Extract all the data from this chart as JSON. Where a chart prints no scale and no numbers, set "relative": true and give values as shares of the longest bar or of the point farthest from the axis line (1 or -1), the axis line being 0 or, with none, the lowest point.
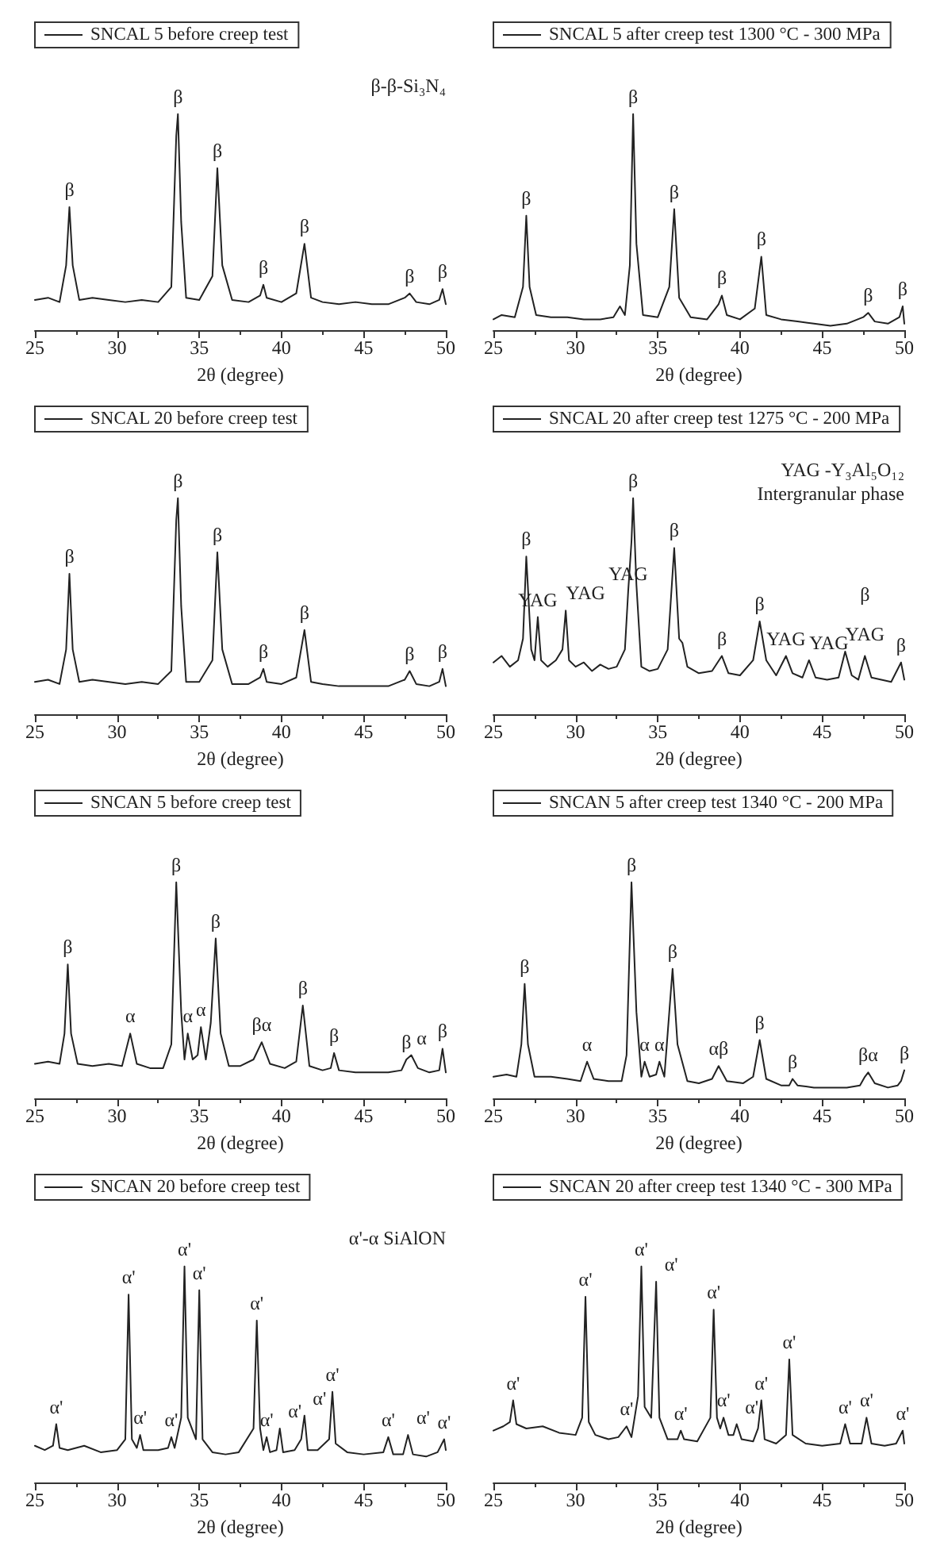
{
  "chart_data": [
    {
      "type": "line",
      "relative": true,
      "xlabel": "2θ (degree)",
      "xlim": [
        25,
        50
      ],
      "xticks": [
        25,
        30,
        35,
        40,
        45,
        50
      ],
      "tick_labels": "x",
      "legend": "top left",
      "annotations": [
        "β-β-Si₃N₄",
        {
          "text": "β",
          "x": 27.1,
          "y": 0.57
        },
        {
          "text": "β",
          "x": 33.7,
          "y": 1
        },
        {
          "text": "β",
          "x": 36.1,
          "y": 0.75
        },
        {
          "text": "β",
          "x": 38.9,
          "y": 0.21
        },
        {
          "text": "β",
          "x": 41.4,
          "y": 0.4
        },
        {
          "text": "β",
          "x": 47.8,
          "y": 0.17
        },
        {
          "text": "β",
          "x": 49.8,
          "y": 0.19
        }
      ],
      "series": [
        {
          "name": "SNCAL 5 before creep test",
          "color": "#222222",
          "x": [
            25,
            25.8,
            26.5,
            26.9,
            27.1,
            27.3,
            27.7,
            28.5,
            29.5,
            30.5,
            31.5,
            32.5,
            33.3,
            33.6,
            33.7,
            33.9,
            34.2,
            35,
            35.8,
            36.1,
            36.4,
            37,
            38,
            38.7,
            38.9,
            39.1,
            40,
            40.9,
            41.4,
            41.8,
            42.5,
            43.5,
            44.5,
            45.5,
            46.5,
            47.5,
            47.8,
            48.2,
            49,
            49.6,
            49.8,
            50
          ],
          "values": [
            0.14,
            0.15,
            0.13,
            0.3,
            0.57,
            0.3,
            0.14,
            0.15,
            0.14,
            0.13,
            0.14,
            0.13,
            0.2,
            0.9,
            1,
            0.5,
            0.15,
            0.14,
            0.25,
            0.75,
            0.3,
            0.14,
            0.13,
            0.16,
            0.21,
            0.15,
            0.13,
            0.17,
            0.4,
            0.15,
            0.13,
            0.12,
            0.13,
            0.12,
            0.12,
            0.15,
            0.17,
            0.13,
            0.12,
            0.14,
            0.19,
            0.12
          ]
        }
      ]
    },
    {
      "type": "line",
      "relative": true,
      "xlabel": "2θ (degree)",
      "xlim": [
        25,
        50
      ],
      "xticks": [
        25,
        30,
        35,
        40,
        45,
        50
      ],
      "tick_labels": "x",
      "legend": "top left",
      "annotations": [
        {
          "text": "β",
          "x": 27.0,
          "y": 0.53
        },
        {
          "text": "β",
          "x": 33.5,
          "y": 1
        },
        {
          "text": "β",
          "x": 36.0,
          "y": 0.56
        },
        {
          "text": "β",
          "x": 38.9,
          "y": 0.16
        },
        {
          "text": "β",
          "x": 41.3,
          "y": 0.34
        },
        {
          "text": "β",
          "x": 47.8,
          "y": 0.08
        },
        {
          "text": "β",
          "x": 49.9,
          "y": 0.11
        }
      ],
      "series": [
        {
          "name": "SNCAL 5 after creep test 1300 °C - 300 MPa",
          "color": "#222222",
          "x": [
            25,
            25.5,
            26.3,
            26.8,
            27.0,
            27.2,
            27.6,
            28.5,
            29.5,
            30.5,
            31.5,
            32.3,
            32.7,
            33.0,
            33.3,
            33.5,
            33.7,
            34.1,
            35,
            35.7,
            36.0,
            36.3,
            37,
            38,
            38.7,
            38.9,
            39.2,
            40,
            40.9,
            41.3,
            41.6,
            42.5,
            43.5,
            44.5,
            45.5,
            46.5,
            47.5,
            47.8,
            48.2,
            49,
            49.7,
            49.9,
            50
          ],
          "values": [
            0.05,
            0.07,
            0.06,
            0.2,
            0.53,
            0.2,
            0.07,
            0.06,
            0.06,
            0.05,
            0.05,
            0.06,
            0.11,
            0.07,
            0.3,
            1,
            0.4,
            0.07,
            0.06,
            0.2,
            0.56,
            0.15,
            0.06,
            0.05,
            0.12,
            0.16,
            0.07,
            0.05,
            0.1,
            0.34,
            0.07,
            0.05,
            0.04,
            0.03,
            0.02,
            0.03,
            0.06,
            0.08,
            0.04,
            0.03,
            0.06,
            0.11,
            0.03
          ]
        }
      ]
    },
    {
      "type": "line",
      "relative": true,
      "xlabel": "2θ (degree)",
      "xlim": [
        25,
        50
      ],
      "xticks": [
        25,
        30,
        35,
        40,
        45,
        50
      ],
      "tick_labels": "x",
      "legend": "top left",
      "annotations": [
        {
          "text": "β",
          "x": 27.1,
          "y": 0.65
        },
        {
          "text": "β",
          "x": 33.7,
          "y": 1
        },
        {
          "text": "β",
          "x": 36.1,
          "y": 0.75
        },
        {
          "text": "β",
          "x": 38.9,
          "y": 0.21
        },
        {
          "text": "β",
          "x": 41.4,
          "y": 0.39
        },
        {
          "text": "β",
          "x": 47.8,
          "y": 0.2
        },
        {
          "text": "β",
          "x": 49.8,
          "y": 0.21
        }
      ],
      "series": [
        {
          "name": "SNCAL 20 before creep test",
          "color": "#222222",
          "x": [
            25,
            25.8,
            26.5,
            26.9,
            27.1,
            27.3,
            27.7,
            28.5,
            29.5,
            30.5,
            31.5,
            32.5,
            33.3,
            33.6,
            33.7,
            33.9,
            34.2,
            35,
            35.8,
            36.1,
            36.4,
            37,
            38,
            38.7,
            38.9,
            39.1,
            40,
            40.9,
            41.4,
            41.8,
            42.5,
            43.5,
            44.5,
            45.5,
            46.5,
            47.5,
            47.8,
            48.2,
            49,
            49.6,
            49.8,
            50
          ],
          "values": [
            0.15,
            0.16,
            0.14,
            0.3,
            0.65,
            0.3,
            0.15,
            0.16,
            0.15,
            0.14,
            0.15,
            0.14,
            0.2,
            0.9,
            1,
            0.5,
            0.15,
            0.15,
            0.25,
            0.75,
            0.3,
            0.14,
            0.14,
            0.17,
            0.21,
            0.15,
            0.14,
            0.17,
            0.39,
            0.15,
            0.14,
            0.13,
            0.13,
            0.13,
            0.13,
            0.16,
            0.2,
            0.14,
            0.13,
            0.15,
            0.21,
            0.13
          ]
        }
      ]
    },
    {
      "type": "line",
      "relative": true,
      "xlabel": "2θ (degree)",
      "xlim": [
        25,
        50
      ],
      "xticks": [
        25,
        30,
        35,
        40,
        45,
        50
      ],
      "tick_labels": "x",
      "legend": "top left",
      "annotations": [
        "YAG -Y₃Al₅O₁₂",
        "Intergranular phase",
        {
          "text": "β",
          "x": 27.0,
          "y": 0.73
        },
        {
          "text": "YAG",
          "x": 27.7,
          "y": 0.45
        },
        {
          "text": "YAG",
          "x": 29.4,
          "y": 0.48
        },
        {
          "text": "YAG",
          "x": 33.2,
          "y": 0.57
        },
        {
          "text": "β",
          "x": 33.5,
          "y": 1
        },
        {
          "text": "β",
          "x": 36.0,
          "y": 0.77
        },
        {
          "text": "β",
          "x": 38.9,
          "y": 0.27
        },
        {
          "text": "β",
          "x": 41.2,
          "y": 0.43
        },
        {
          "text": "YAG",
          "x": 42.8,
          "y": 0.27
        },
        {
          "text": "YAG",
          "x": 44.2,
          "y": 0.25
        },
        {
          "text": "YAG",
          "x": 46.4,
          "y": 0.29
        },
        {
          "text": "β",
          "x": 47.6,
          "y": 0.27
        },
        {
          "text": "β",
          "x": 49.8,
          "y": 0.24
        }
      ],
      "series": [
        {
          "name": "SNCAL 20 after creep test 1275 °C - 200 MPa",
          "color": "#222222",
          "x": [
            25,
            25.5,
            26,
            26.5,
            26.8,
            27.0,
            27.3,
            27.5,
            27.7,
            27.9,
            28.3,
            28.8,
            29.2,
            29.4,
            29.6,
            30,
            30.5,
            31,
            31.5,
            32,
            32.5,
            33.0,
            33.2,
            33.4,
            33.5,
            33.7,
            34,
            34.5,
            35,
            35.6,
            36.0,
            36.3,
            36.5,
            36.8,
            37.5,
            38.3,
            38.9,
            39.3,
            40,
            40.8,
            41.2,
            41.6,
            42.2,
            42.8,
            43.2,
            43.8,
            44.2,
            44.6,
            45.3,
            46,
            46.4,
            46.8,
            47.2,
            47.6,
            48,
            48.6,
            49.2,
            49.8,
            50
          ],
          "values": [
            0.24,
            0.27,
            0.22,
            0.25,
            0.35,
            0.73,
            0.3,
            0.25,
            0.45,
            0.25,
            0.22,
            0.25,
            0.3,
            0.48,
            0.25,
            0.22,
            0.24,
            0.2,
            0.23,
            0.21,
            0.22,
            0.3,
            0.57,
            0.8,
            1,
            0.6,
            0.22,
            0.2,
            0.21,
            0.3,
            0.77,
            0.35,
            0.33,
            0.22,
            0.19,
            0.2,
            0.27,
            0.19,
            0.18,
            0.25,
            0.43,
            0.25,
            0.18,
            0.27,
            0.19,
            0.17,
            0.25,
            0.17,
            0.16,
            0.17,
            0.29,
            0.18,
            0.16,
            0.27,
            0.17,
            0.16,
            0.15,
            0.24,
            0.16
          ]
        }
      ]
    },
    {
      "type": "line",
      "relative": true,
      "xlabel": "2θ (degree)",
      "xlim": [
        25,
        50
      ],
      "xticks": [
        25,
        30,
        35,
        40,
        45,
        50
      ],
      "tick_labels": "x",
      "legend": "top left",
      "annotations": [
        {
          "text": "β",
          "x": 27.0,
          "y": 0.62
        },
        {
          "text": "α",
          "x": 30.8,
          "y": 0.3
        },
        {
          "text": "β",
          "x": 33.6,
          "y": 1
        },
        {
          "text": "α",
          "x": 34.3,
          "y": 0.3
        },
        {
          "text": "α",
          "x": 35.1,
          "y": 0.33
        },
        {
          "text": "β",
          "x": 36.0,
          "y": 0.74
        },
        {
          "text": "βα",
          "x": 38.8,
          "y": 0.26
        },
        {
          "text": "β",
          "x": 41.3,
          "y": 0.43
        },
        {
          "text": "β",
          "x": 43.2,
          "y": 0.21
        },
        {
          "text": "β",
          "x": 47.6,
          "y": 0.18
        },
        {
          "text": "α",
          "x": 47.9,
          "y": 0.2
        },
        {
          "text": "β",
          "x": 49.8,
          "y": 0.23
        }
      ],
      "series": [
        {
          "name": "SNCAN 5 before creep test",
          "color": "#222222",
          "x": [
            25,
            25.8,
            26.5,
            26.8,
            27.0,
            27.2,
            27.6,
            28.5,
            29.5,
            30.3,
            30.8,
            31.2,
            32,
            32.8,
            33.3,
            33.6,
            33.9,
            34.1,
            34.3,
            34.6,
            34.9,
            35.1,
            35.4,
            35.7,
            36.0,
            36.3,
            36.8,
            37.5,
            38.3,
            38.8,
            39.3,
            40.2,
            40.9,
            41.3,
            41.7,
            42.5,
            43.0,
            43.2,
            43.5,
            44.5,
            45.5,
            46.5,
            47.3,
            47.6,
            47.9,
            48.3,
            49,
            49.6,
            49.8,
            50
          ],
          "values": [
            0.16,
            0.17,
            0.16,
            0.3,
            0.62,
            0.3,
            0.16,
            0.15,
            0.16,
            0.15,
            0.3,
            0.16,
            0.14,
            0.14,
            0.25,
            1,
            0.4,
            0.18,
            0.3,
            0.18,
            0.2,
            0.33,
            0.18,
            0.35,
            0.74,
            0.3,
            0.15,
            0.15,
            0.18,
            0.26,
            0.16,
            0.14,
            0.17,
            0.43,
            0.15,
            0.13,
            0.14,
            0.21,
            0.13,
            0.12,
            0.12,
            0.12,
            0.13,
            0.18,
            0.2,
            0.14,
            0.12,
            0.13,
            0.23,
            0.12
          ]
        }
      ]
    },
    {
      "type": "line",
      "relative": true,
      "xlabel": "2θ (degree)",
      "xlim": [
        25,
        50
      ],
      "xticks": [
        25,
        30,
        35,
        40,
        45,
        50
      ],
      "tick_labels": "x",
      "legend": "top left",
      "annotations": [
        {
          "text": "β",
          "x": 26.9,
          "y": 0.53
        },
        {
          "text": "α",
          "x": 30.7,
          "y": 0.17
        },
        {
          "text": "β",
          "x": 33.4,
          "y": 1
        },
        {
          "text": "α",
          "x": 34.2,
          "y": 0.17
        },
        {
          "text": "α",
          "x": 35.1,
          "y": 0.17
        },
        {
          "text": "β",
          "x": 35.9,
          "y": 0.6
        },
        {
          "text": "αβ",
          "x": 38.7,
          "y": 0.15
        },
        {
          "text": "β",
          "x": 41.2,
          "y": 0.27
        },
        {
          "text": "β",
          "x": 43.2,
          "y": 0.09
        },
        {
          "text": "βα",
          "x": 47.8,
          "y": 0.12
        },
        {
          "text": "β",
          "x": 50,
          "y": 0.13
        }
      ],
      "series": [
        {
          "name": "SNCAN 5 after creep test 1340 °C - 200 MPa",
          "color": "#222222",
          "x": [
            25,
            25.8,
            26.4,
            26.7,
            26.9,
            27.1,
            27.5,
            28.5,
            29.5,
            30.3,
            30.7,
            31.1,
            32,
            32.8,
            33.1,
            33.4,
            33.7,
            34.0,
            34.2,
            34.5,
            34.9,
            35.1,
            35.4,
            35.6,
            35.9,
            36.2,
            36.8,
            37.5,
            38.3,
            38.7,
            39.2,
            40.2,
            40.8,
            41.2,
            41.6,
            42.5,
            43.0,
            43.2,
            43.5,
            44.5,
            45.5,
            46.5,
            47.3,
            47.6,
            47.8,
            48.2,
            49,
            49.6,
            49.8,
            50
          ],
          "values": [
            0.1,
            0.11,
            0.1,
            0.25,
            0.53,
            0.25,
            0.1,
            0.1,
            0.09,
            0.08,
            0.17,
            0.09,
            0.08,
            0.08,
            0.2,
            1,
            0.4,
            0.1,
            0.17,
            0.1,
            0.11,
            0.17,
            0.1,
            0.3,
            0.6,
            0.25,
            0.08,
            0.07,
            0.09,
            0.15,
            0.08,
            0.07,
            0.1,
            0.27,
            0.09,
            0.06,
            0.06,
            0.09,
            0.06,
            0.05,
            0.05,
            0.05,
            0.06,
            0.1,
            0.12,
            0.07,
            0.05,
            0.06,
            0.08,
            0.13
          ]
        }
      ]
    },
    {
      "type": "line",
      "relative": true,
      "xlabel": "2θ (degree)",
      "xlim": [
        25,
        50
      ],
      "xticks": [
        25,
        30,
        35,
        40,
        45,
        50
      ],
      "tick_labels": "x",
      "legend": "top left",
      "annotations": [
        "α'-α SiAlON",
        {
          "text": "α'",
          "x": 26.3,
          "y": 0.27
        },
        {
          "text": "α'",
          "x": 30.7,
          "y": 0.87
        },
        {
          "text": "α'",
          "x": 31.4,
          "y": 0.22
        },
        {
          "text": "α'",
          "x": 33.3,
          "y": 0.21
        },
        {
          "text": "α'",
          "x": 34.1,
          "y": 1
        },
        {
          "text": "α'",
          "x": 35.0,
          "y": 0.89
        },
        {
          "text": "α'",
          "x": 38.5,
          "y": 0.75
        },
        {
          "text": "α'",
          "x": 39.1,
          "y": 0.21
        },
        {
          "text": "α'",
          "x": 39.9,
          "y": 0.25
        },
        {
          "text": "α'",
          "x": 41.4,
          "y": 0.31
        },
        {
          "text": "α'",
          "x": 43.1,
          "y": 0.42
        },
        {
          "text": "α'",
          "x": 46.5,
          "y": 0.21
        },
        {
          "text": "α'",
          "x": 47.7,
          "y": 0.22
        },
        {
          "text": "α'",
          "x": 49.9,
          "y": 0.2
        }
      ],
      "series": [
        {
          "name": "SNCAN 20 before creep test",
          "color": "#222222",
          "x": [
            25,
            25.6,
            26.1,
            26.3,
            26.5,
            27,
            28,
            29,
            30,
            30.5,
            30.7,
            30.9,
            31.2,
            31.4,
            31.6,
            32.5,
            33.1,
            33.3,
            33.5,
            33.9,
            34.1,
            34.3,
            34.8,
            35.0,
            35.2,
            35.8,
            36.6,
            37.4,
            38.3,
            38.5,
            38.7,
            38.9,
            39.1,
            39.3,
            39.7,
            39.9,
            40.1,
            40.8,
            41.2,
            41.4,
            41.6,
            42.2,
            42.9,
            43.1,
            43.3,
            44,
            45,
            46.2,
            46.5,
            46.8,
            47.4,
            47.7,
            48,
            48.8,
            49.5,
            49.9,
            50
          ],
          "values": [
            0.17,
            0.15,
            0.17,
            0.27,
            0.16,
            0.15,
            0.17,
            0.14,
            0.15,
            0.2,
            0.87,
            0.2,
            0.16,
            0.22,
            0.15,
            0.15,
            0.16,
            0.21,
            0.16,
            0.3,
            1,
            0.3,
            0.2,
            0.89,
            0.2,
            0.14,
            0.13,
            0.14,
            0.25,
            0.75,
            0.25,
            0.15,
            0.21,
            0.14,
            0.15,
            0.25,
            0.14,
            0.15,
            0.2,
            0.31,
            0.15,
            0.15,
            0.2,
            0.42,
            0.18,
            0.14,
            0.13,
            0.14,
            0.21,
            0.13,
            0.13,
            0.22,
            0.13,
            0.12,
            0.14,
            0.2,
            0.15
          ]
        }
      ]
    },
    {
      "type": "line",
      "relative": true,
      "xlabel": "2θ (degree)",
      "xlim": [
        25,
        50
      ],
      "xticks": [
        25,
        30,
        35,
        40,
        45,
        50
      ],
      "tick_labels": "x",
      "legend": "top left",
      "annotations": [
        {
          "text": "α'",
          "x": 26.2,
          "y": 0.38
        },
        {
          "text": "α'",
          "x": 30.6,
          "y": 0.86
        },
        {
          "text": "α'",
          "x": 33.1,
          "y": 0.26
        },
        {
          "text": "α'",
          "x": 34.0,
          "y": 1
        },
        {
          "text": "α'",
          "x": 34.9,
          "y": 0.93
        },
        {
          "text": "α'",
          "x": 36.4,
          "y": 0.24
        },
        {
          "text": "α'",
          "x": 38.4,
          "y": 0.8
        },
        {
          "text": "α'",
          "x": 39.0,
          "y": 0.3
        },
        {
          "text": "α'",
          "x": 39.8,
          "y": 0.27
        },
        {
          "text": "α'",
          "x": 41.3,
          "y": 0.38
        },
        {
          "text": "α'",
          "x": 43.0,
          "y": 0.57
        },
        {
          "text": "α'",
          "x": 46.4,
          "y": 0.27
        },
        {
          "text": "α'",
          "x": 47.7,
          "y": 0.3
        },
        {
          "text": "α'",
          "x": 49.9,
          "y": 0.24
        }
      ],
      "series": [
        {
          "name": "SNCAN 20 after creep test 1340 °C - 300 MPa",
          "color": "#222222",
          "x": [
            25,
            25.6,
            26.0,
            26.2,
            26.4,
            27,
            28,
            29,
            30,
            30.4,
            30.6,
            30.8,
            31.2,
            32,
            32.6,
            33.1,
            33.4,
            33.8,
            34.0,
            34.2,
            34.6,
            34.9,
            35.1,
            35.6,
            36.2,
            36.4,
            36.6,
            37.4,
            38.2,
            38.4,
            38.6,
            38.8,
            39.0,
            39.3,
            39.6,
            39.8,
            40.1,
            40.8,
            41.1,
            41.3,
            41.5,
            42.2,
            42.8,
            43.0,
            43.2,
            44,
            45,
            46.1,
            46.4,
            46.7,
            47.4,
            47.7,
            48,
            48.8,
            49.5,
            49.9,
            50
          ],
          "values": [
            0.24,
            0.26,
            0.28,
            0.38,
            0.27,
            0.25,
            0.26,
            0.23,
            0.22,
            0.3,
            0.86,
            0.28,
            0.22,
            0.2,
            0.21,
            0.26,
            0.21,
            0.4,
            1,
            0.35,
            0.3,
            0.93,
            0.3,
            0.2,
            0.2,
            0.24,
            0.2,
            0.19,
            0.3,
            0.8,
            0.3,
            0.25,
            0.3,
            0.22,
            0.22,
            0.27,
            0.2,
            0.19,
            0.25,
            0.38,
            0.2,
            0.18,
            0.22,
            0.57,
            0.22,
            0.18,
            0.17,
            0.18,
            0.27,
            0.18,
            0.18,
            0.3,
            0.18,
            0.17,
            0.18,
            0.24,
            0.18
          ]
        }
      ]
    }
  ]
}
